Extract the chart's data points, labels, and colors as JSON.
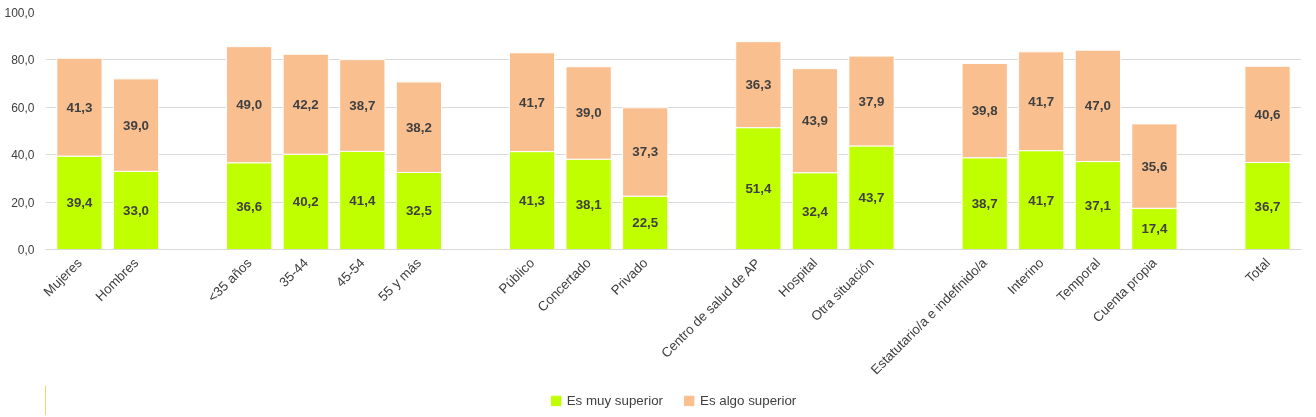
{
  "chart_data": {
    "type": "bar",
    "stacked": true,
    "categories": [
      "Mujeres",
      "Hombres",
      null,
      "<35 años",
      "35-44",
      "45-54",
      "55 y más",
      null,
      "Público",
      "Concertado",
      "Privado",
      null,
      "Centro de salud de AP",
      "Hospital",
      "Otra situación",
      null,
      "Estatutario/a e indefinido/a",
      "Interino",
      "Temporal",
      "Cuenta propia",
      null,
      "Total"
    ],
    "series": [
      {
        "name": "Es muy superior",
        "color": "#bfff00",
        "values": [
          39.4,
          33.0,
          null,
          36.6,
          40.2,
          41.4,
          32.5,
          null,
          41.3,
          38.1,
          22.5,
          null,
          51.4,
          32.4,
          43.7,
          null,
          38.7,
          41.7,
          37.1,
          17.4,
          null,
          36.7
        ],
        "value_labels": [
          "39,4",
          "33,0",
          null,
          "36,6",
          "40,2",
          "41,4",
          "32,5",
          null,
          "41,3",
          "38,1",
          "22,5",
          null,
          "51,4",
          "32,4",
          "43,7",
          null,
          "38,7",
          "41,7",
          "37,1",
          "17,4",
          null,
          "36,7"
        ]
      },
      {
        "name": "Es algo superior",
        "color": "#f9bf8f",
        "values": [
          41.3,
          39.0,
          null,
          49.0,
          42.2,
          38.7,
          38.2,
          null,
          41.7,
          39.0,
          37.3,
          null,
          36.3,
          43.9,
          37.9,
          null,
          39.8,
          41.7,
          47.0,
          35.6,
          null,
          40.6
        ],
        "value_labels": [
          "41,3",
          "39,0",
          null,
          "49,0",
          "42,2",
          "38,7",
          "38,2",
          null,
          "41,7",
          "39,0",
          "37,3",
          null,
          "36,3",
          "43,9",
          "37,9",
          null,
          "39,8",
          "41,7",
          "47,0",
          "35,6",
          null,
          "40,6"
        ]
      }
    ],
    "ylim": [
      0,
      100
    ],
    "yticks": [
      {
        "value": 0,
        "label": "0,0"
      },
      {
        "value": 20,
        "label": "20,0"
      },
      {
        "value": 40,
        "label": "40,0"
      },
      {
        "value": 60,
        "label": "60,0"
      },
      {
        "value": 80,
        "label": "80,0"
      },
      {
        "value": 100,
        "label": "100,0"
      }
    ],
    "grid": "y",
    "legend": "bottom"
  }
}
